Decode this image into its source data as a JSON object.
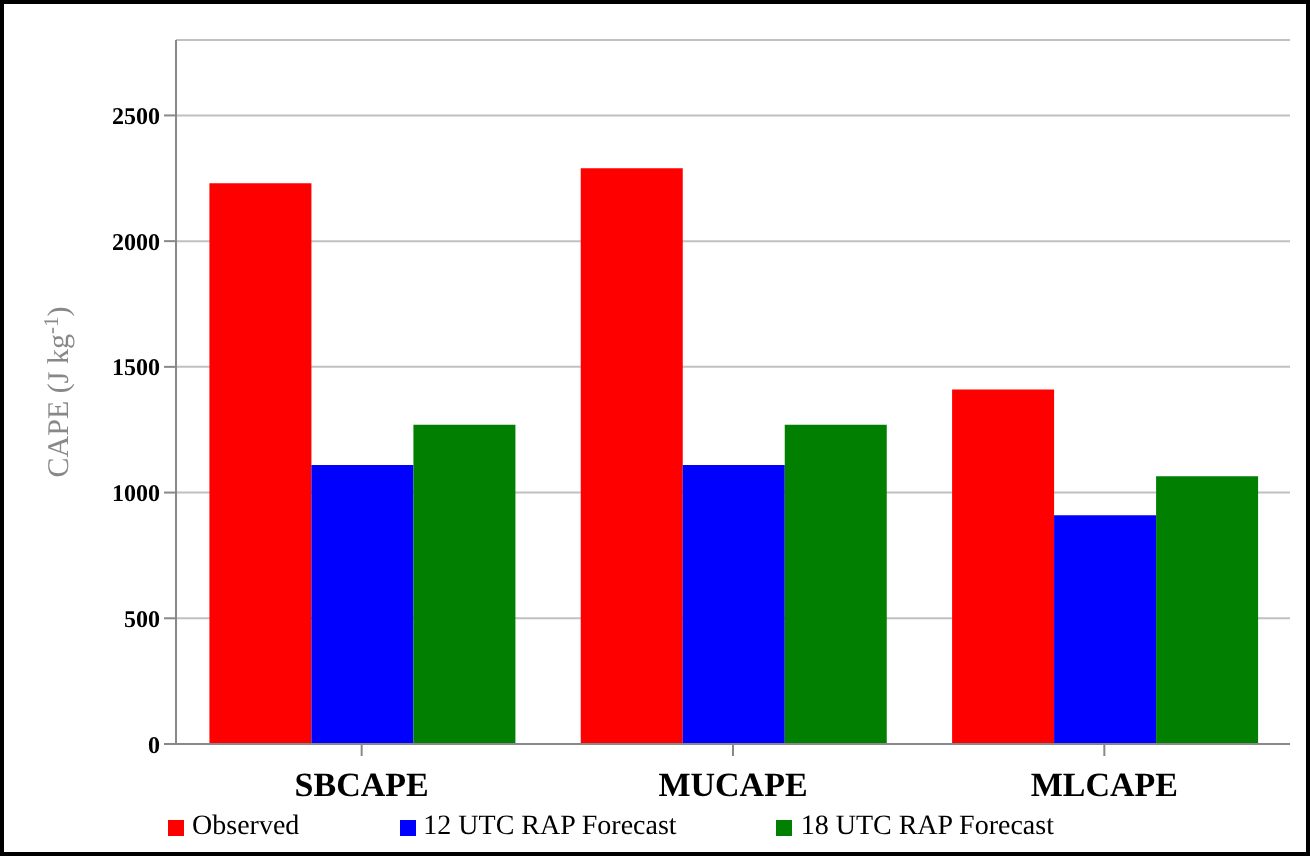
{
  "chart_data": {
    "type": "bar",
    "ylabel": "CAPE (J kg$^{-1}$)",
    "categories": [
      "SBCAPE",
      "MUCAPE",
      "MLCAPE"
    ],
    "series": [
      {
        "name": "Observed",
        "color": "#ff0000",
        "values": [
          2230,
          2290,
          1410
        ]
      },
      {
        "name": "12 UTC RAP Forecast",
        "color": "#0000ff",
        "values": [
          1110,
          1110,
          910
        ]
      },
      {
        "name": "18 UTC RAP Forecast",
        "color": "#007f00",
        "values": [
          1270,
          1270,
          1065
        ]
      }
    ],
    "ylim": [
      0,
      2800
    ],
    "yticks": [
      0,
      500,
      1000,
      1500,
      2000,
      2500
    ],
    "grid": "y",
    "legend": "bottom"
  }
}
